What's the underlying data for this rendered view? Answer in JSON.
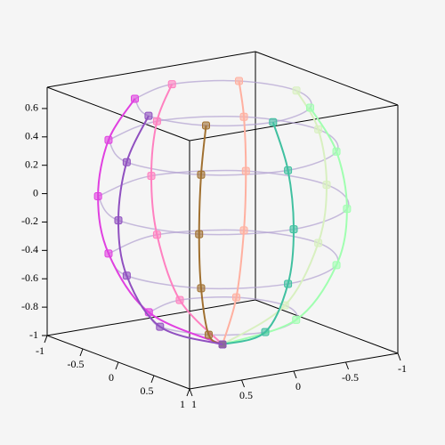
{
  "chart_data": {
    "type": "wireframe3d",
    "xlim": [
      -1,
      1
    ],
    "ylim": [
      -1,
      1
    ],
    "zlim": [
      -1,
      0.75
    ],
    "xticks": [
      -1,
      -0.5,
      0,
      0.5,
      1
    ],
    "yticks": [
      -1,
      -0.5,
      0,
      0.5,
      1
    ],
    "zticks": [
      -1,
      -0.8,
      -0.6,
      -0.4,
      -0.2,
      0,
      0.2,
      0.4,
      0.6
    ],
    "series": [
      {
        "color": "#e040e0",
        "x": [
          -0.5,
          -0.65,
          -0.71,
          -0.65,
          -0.42,
          0
        ],
        "y": [
          0.5,
          0.65,
          0.71,
          0.65,
          0.42,
          0
        ],
        "z": [
          0.7,
          0.4,
          0,
          -0.4,
          -0.8,
          -1
        ]
      },
      {
        "color": "#ff80c0",
        "x": [
          -0.71,
          -0.92,
          -1,
          -0.92,
          -0.6,
          0
        ],
        "y": [
          0,
          0,
          0,
          0,
          0,
          0
        ],
        "z": [
          0.7,
          0.4,
          0,
          -0.4,
          -0.8,
          -1
        ]
      },
      {
        "color": "#ffb0a0",
        "x": [
          -0.5,
          -0.65,
          -0.71,
          -0.65,
          -0.42,
          0
        ],
        "y": [
          -0.5,
          -0.65,
          -0.71,
          -0.65,
          -0.42,
          0
        ],
        "z": [
          0.7,
          0.4,
          0,
          -0.4,
          -0.8,
          -1
        ]
      },
      {
        "color": "#d8f0c0",
        "x": [
          0,
          0,
          0,
          0,
          0,
          0
        ],
        "y": [
          -0.71,
          -0.92,
          -1,
          -0.92,
          -0.6,
          0
        ],
        "z": [
          0.7,
          0.4,
          0,
          -0.4,
          -0.8,
          -1
        ]
      },
      {
        "color": "#a0ffb0",
        "x": [
          0.5,
          0.65,
          0.71,
          0.65,
          0.42,
          0
        ],
        "y": [
          -0.5,
          -0.65,
          -0.71,
          -0.65,
          -0.42,
          0
        ],
        "z": [
          0.7,
          0.4,
          0,
          -0.4,
          -0.8,
          -1
        ]
      },
      {
        "color": "#40c0a0",
        "x": [
          0.71,
          0.92,
          1,
          0.92,
          0.6,
          0
        ],
        "y": [
          0,
          0,
          0,
          0,
          0,
          0
        ],
        "z": [
          0.7,
          0.4,
          0,
          -0.4,
          -0.8,
          -1
        ]
      },
      {
        "color": "#a07030",
        "x": [
          0.5,
          0.65,
          0.71,
          0.65,
          0.42,
          0
        ],
        "y": [
          0.5,
          0.65,
          0.71,
          0.65,
          0.42,
          0
        ],
        "z": [
          0.7,
          0.4,
          0,
          -0.4,
          -0.8,
          -1
        ]
      },
      {
        "color": "#9050c0",
        "x": [
          0,
          0,
          0,
          0,
          0,
          0
        ],
        "y": [
          0.71,
          0.92,
          1,
          0.92,
          0.6,
          0
        ],
        "z": [
          0.7,
          0.4,
          0,
          -0.4,
          -0.8,
          -1
        ]
      }
    ]
  }
}
